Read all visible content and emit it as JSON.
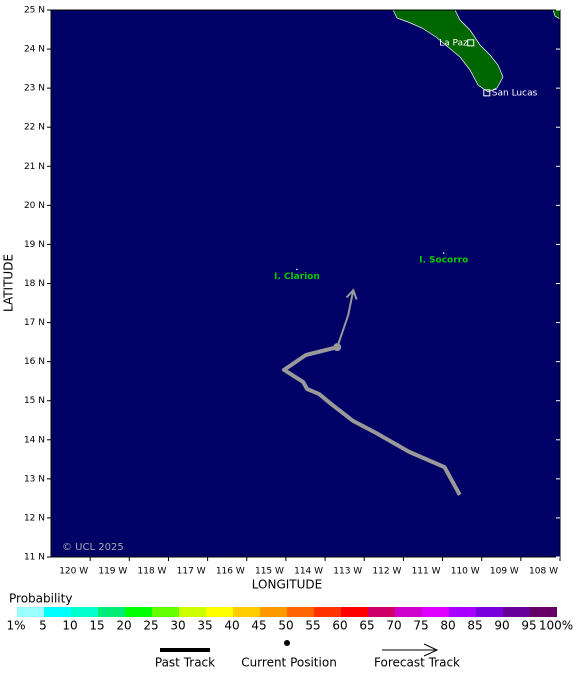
{
  "map": {
    "xlim": [
      -121,
      -108
    ],
    "ylim": [
      11,
      25
    ],
    "xticks": [
      {
        "value": -120,
        "label": "120 W"
      },
      {
        "value": -119,
        "label": "119 W"
      },
      {
        "value": -118,
        "label": "118 W"
      },
      {
        "value": -117,
        "label": "117 W"
      },
      {
        "value": -116,
        "label": "116 W"
      },
      {
        "value": -115,
        "label": "115 W"
      },
      {
        "value": -114,
        "label": "114 W"
      },
      {
        "value": -113,
        "label": "113 W"
      },
      {
        "value": -112,
        "label": "112 W"
      },
      {
        "value": -111,
        "label": "111 W"
      },
      {
        "value": -110,
        "label": "110 W"
      },
      {
        "value": -109,
        "label": "109 W"
      },
      {
        "value": -108,
        "label": "108 W"
      }
    ],
    "yticks": [
      {
        "value": 11,
        "label": "11 N"
      },
      {
        "value": 12,
        "label": "12 N"
      },
      {
        "value": 13,
        "label": "13 N"
      },
      {
        "value": 14,
        "label": "14 N"
      },
      {
        "value": 15,
        "label": "15 N"
      },
      {
        "value": 16,
        "label": "16 N"
      },
      {
        "value": 17,
        "label": "17 N"
      },
      {
        "value": 18,
        "label": "18 N"
      },
      {
        "value": 19,
        "label": "19 N"
      },
      {
        "value": 20,
        "label": "20 N"
      },
      {
        "value": 21,
        "label": "21 N"
      },
      {
        "value": 22,
        "label": "22 N"
      },
      {
        "value": 23,
        "label": "23 N"
      },
      {
        "value": 24,
        "label": "24 N"
      },
      {
        "value": 25,
        "label": "25 N"
      }
    ],
    "xlabel": "LONGITUDE",
    "ylabel": "LATITUDE",
    "copyright": "© UCL 2025",
    "ocean_color": "#000066",
    "track_color": "#999999",
    "past_track": {
      "lon": [
        -110.56,
        -110.95,
        -111.85,
        -112.69,
        -113.28,
        -113.85,
        -114.15,
        -114.46,
        -114.56,
        -115.05,
        -114.49,
        -113.69
      ],
      "lat": [
        12.59,
        13.3,
        13.69,
        14.17,
        14.48,
        14.92,
        15.17,
        15.3,
        15.48,
        15.79,
        16.17,
        16.37
      ]
    },
    "forecast_track": {
      "lon": [
        -113.69,
        -113.41,
        -113.28
      ],
      "lat": [
        16.37,
        17.19,
        17.83
      ]
    },
    "current": {
      "lon": -113.69,
      "lat": 16.37
    },
    "cities": [
      {
        "name": "La Paz",
        "lon": -110.28,
        "lat": 24.16
      },
      {
        "name": "San Lucas",
        "lon": -109.87,
        "lat": 22.88
      }
    ],
    "islands": [
      {
        "name": "I. Clarion",
        "lon": -114.72,
        "lat": 18.36
      },
      {
        "name": "I. Socorro",
        "lon": -110.97,
        "lat": 18.78
      }
    ]
  },
  "legend": {
    "title": "Probability",
    "labels": [
      "1%",
      "5",
      "10",
      "15",
      "20",
      "25",
      "30",
      "35",
      "40",
      "45",
      "50",
      "55",
      "60",
      "65",
      "70",
      "75",
      "80",
      "85",
      "90",
      "95",
      "100%"
    ],
    "colors": [
      "#99ffff",
      "#00ffff",
      "#00ffcc",
      "#00ee77",
      "#00ff00",
      "#66ff00",
      "#ccff00",
      "#ffff00",
      "#ffcc00",
      "#ff9900",
      "#ff6600",
      "#ff3300",
      "#ff0000",
      "#cc0066",
      "#cc00cc",
      "#dd00ff",
      "#aa00ff",
      "#7700dd",
      "#660099",
      "#660066"
    ],
    "past": "Past Track",
    "current": "Current Position",
    "forecast": "Forecast Track"
  }
}
